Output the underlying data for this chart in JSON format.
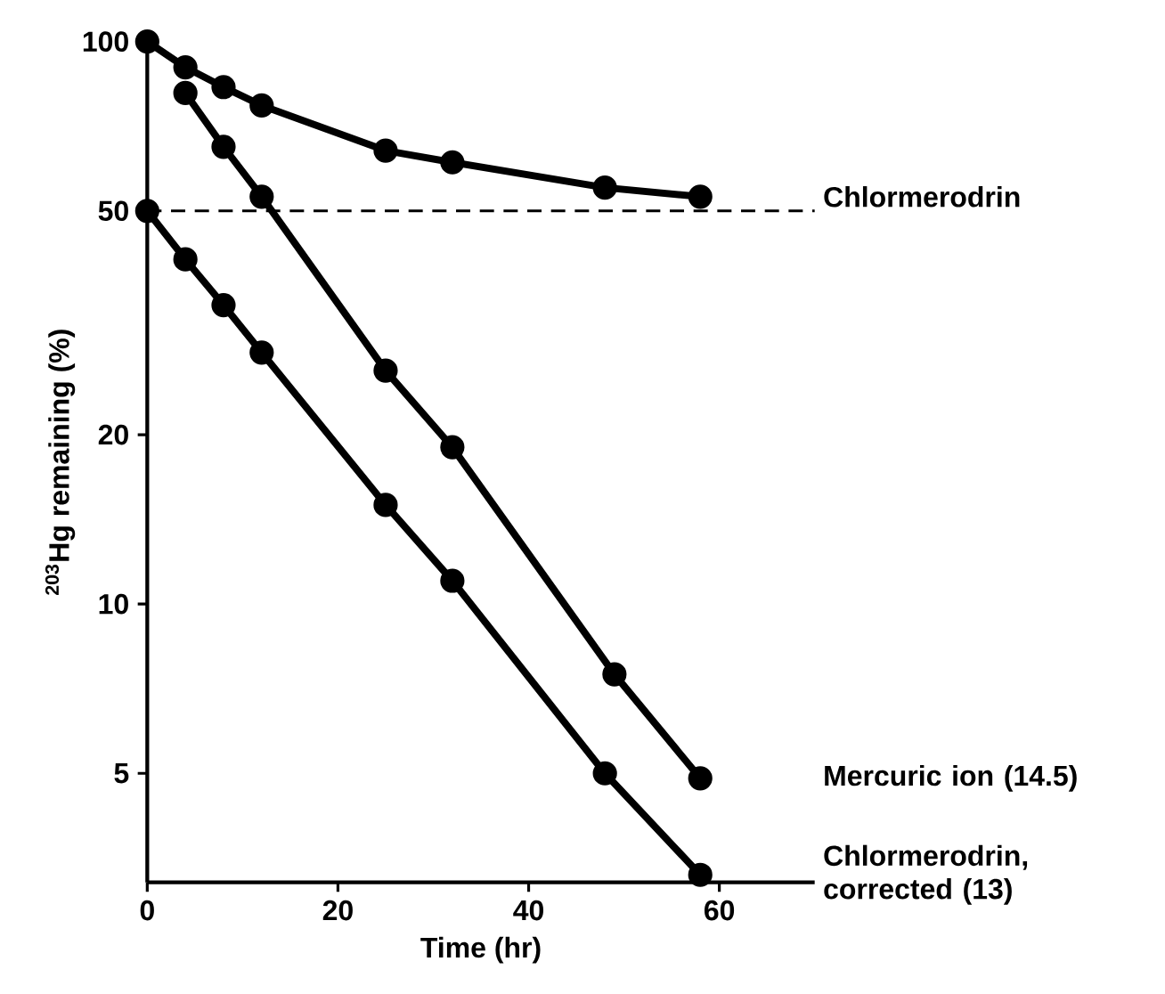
{
  "chart_data": {
    "type": "line",
    "xlabel": "Time (hr)",
    "ylabel": "$^{203}$Hg remaining (%)",
    "series": [
      {
        "name": "Chlormerodrin",
        "color": "#000000",
        "x": [
          0,
          4,
          8,
          12,
          25,
          32,
          48,
          58
        ],
        "values": [
          100,
          90,
          83,
          77,
          64,
          61,
          55,
          53
        ]
      },
      {
        "name": "Mercuric ion (14.5)",
        "color": "#000000",
        "x": [
          4,
          8,
          12,
          25,
          32,
          49,
          58
        ],
        "values": [
          81,
          65,
          53,
          26,
          19,
          7.5,
          4.9
        ]
      },
      {
        "name": "Chlormerodrin, corrected (13)",
        "color": "#000000",
        "x": [
          0,
          4,
          8,
          12,
          25,
          32,
          48,
          58
        ],
        "values": [
          50,
          41,
          34,
          28,
          15,
          11,
          5,
          3.3
        ]
      }
    ],
    "xlim": [
      0,
      70
    ],
    "ylim": [
      3.2,
      100
    ],
    "xticks": [
      0,
      20,
      40,
      60
    ],
    "yticks": [
      5,
      10,
      20,
      50,
      100
    ],
    "log": "y",
    "grid": false,
    "marker": "circle",
    "line_style": "solid",
    "ref_lines": [
      {
        "axis": "y",
        "value": 50,
        "color": "#000000",
        "line_style": "dashed"
      }
    ]
  }
}
